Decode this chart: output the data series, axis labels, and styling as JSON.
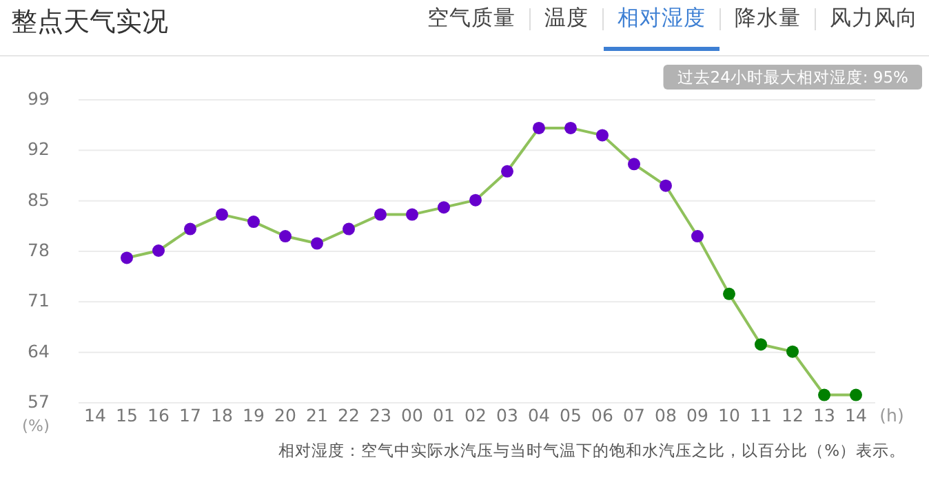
{
  "chart_data": {
    "type": "line",
    "title": "整点天气实况",
    "categories": [
      "14",
      "15",
      "16",
      "17",
      "18",
      "19",
      "20",
      "21",
      "22",
      "23",
      "00",
      "01",
      "02",
      "03",
      "04",
      "05",
      "06",
      "07",
      "08",
      "09",
      "10",
      "11",
      "12",
      "13",
      "14"
    ],
    "series": [
      {
        "color": "#8fc15b",
        "values": [
          null,
          77,
          78,
          81,
          83,
          82,
          80,
          79,
          81,
          83,
          83,
          84,
          85,
          89,
          95,
          95,
          94,
          90,
          87,
          80,
          72,
          65,
          64,
          58,
          58
        ],
        "colors": [
          null,
          "#6600cc",
          "#6600cc",
          "#6600cc",
          "#6600cc",
          "#6600cc",
          "#6600cc",
          "#6600cc",
          "#6600cc",
          "#6600cc",
          "#6600cc",
          "#6600cc",
          "#6600cc",
          "#6600cc",
          "#6600cc",
          "#6600cc",
          "#6600cc",
          "#6600cc",
          "#6600cc",
          "#6600cc",
          "#008000",
          "#008000",
          "#008000",
          "#008000",
          "#008000"
        ]
      }
    ],
    "ylim": [
      57,
      99
    ],
    "yticks": [
      57,
      64,
      71,
      78,
      85,
      92,
      99
    ],
    "xlabel": "(h)",
    "ylabel": "(%)",
    "grid": "y",
    "marker": "circle",
    "line_style": "solid",
    "annotations": [
      "空气质量",
      "温度",
      "相对湿度",
      "降水量",
      "风力风向",
      "过去24小时最大相对湿度: 95%",
      "相对湿度：空气中实际水汽压与当时气温下的饱和水汽压之比，以百分比（%）表示。"
    ]
  }
}
